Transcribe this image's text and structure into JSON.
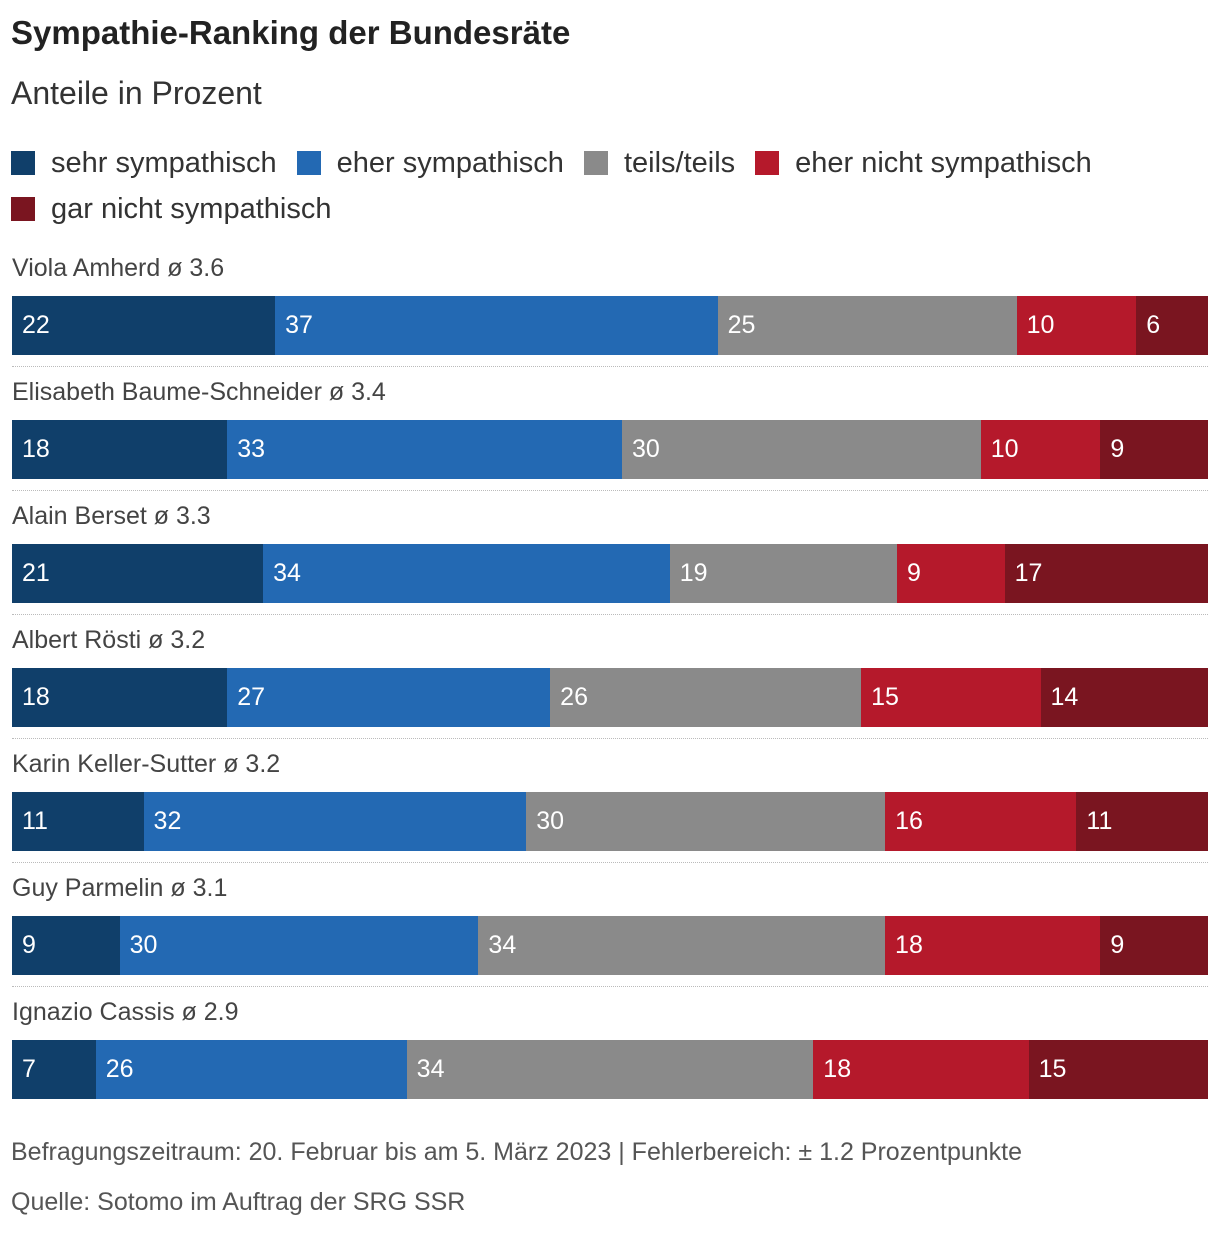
{
  "title": "Sympathie-Ranking der Bundesräte",
  "subtitle": "Anteile in Prozent",
  "legend": [
    {
      "label": "sehr sympathisch",
      "color": "#103f6a"
    },
    {
      "label": "eher sympathisch",
      "color": "#2369b3"
    },
    {
      "label": "teils/teils",
      "color": "#8a8a8a"
    },
    {
      "label": "eher nicht sympathisch",
      "color": "#b5192b"
    },
    {
      "label": "gar nicht sympathisch",
      "color": "#7a1520"
    }
  ],
  "chart_data": {
    "type": "bar",
    "orientation": "horizontal",
    "stacked": true,
    "categories": [
      "Viola Amherd ø 3.6",
      "Elisabeth Baume-Schneider ø 3.4",
      "Alain Berset ø 3.3",
      "Albert Rösti ø 3.2",
      "Karin Keller-Sutter ø 3.2",
      "Guy Parmelin ø 3.1",
      "Ignazio Cassis ø 2.9"
    ],
    "series": [
      {
        "name": "sehr sympathisch",
        "color": "#103f6a",
        "values": [
          22,
          18,
          21,
          18,
          11,
          9,
          7
        ]
      },
      {
        "name": "eher sympathisch",
        "color": "#2369b3",
        "values": [
          37,
          33,
          34,
          27,
          32,
          30,
          26
        ]
      },
      {
        "name": "teils/teils",
        "color": "#8a8a8a",
        "values": [
          25,
          30,
          19,
          26,
          30,
          34,
          34
        ]
      },
      {
        "name": "eher nicht sympathisch",
        "color": "#b5192b",
        "values": [
          10,
          10,
          9,
          15,
          16,
          18,
          18
        ]
      },
      {
        "name": "gar nicht sympathisch",
        "color": "#7a1520",
        "values": [
          6,
          9,
          17,
          14,
          11,
          9,
          15
        ]
      }
    ]
  },
  "footer": {
    "note": "Befragungszeitraum: 20. Februar bis am 5. März 2023 | Fehlerbereich: ± 1.2 Prozentpunkte",
    "source": "Quelle: Sotomo im Auftrag der SRG SSR"
  }
}
